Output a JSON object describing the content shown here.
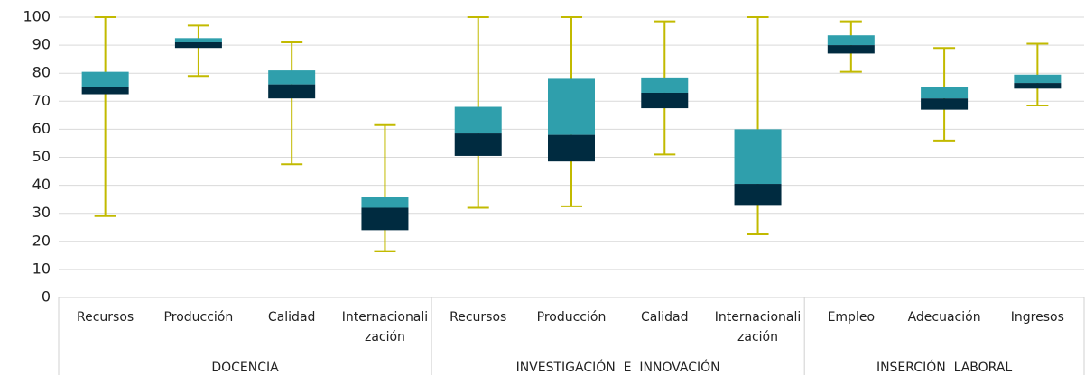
{
  "chart_data": {
    "type": "box",
    "ylim": [
      0,
      100
    ],
    "yticks": [
      0,
      10,
      20,
      30,
      40,
      50,
      60,
      70,
      80,
      90,
      100
    ],
    "grid": true,
    "colors": {
      "upper": "#2f9fac",
      "lower": "#002b40",
      "whisker": "#c2ba00"
    },
    "groups": [
      {
        "name": "DOCENCIA",
        "boxes": [
          {
            "label": "Recursos",
            "min": 29,
            "q1": 72.5,
            "median": 75,
            "q3": 80.5,
            "max": 100
          },
          {
            "label": "Producción",
            "min": 79,
            "q1": 89,
            "median": 91,
            "q3": 92.5,
            "max": 97
          },
          {
            "label": "Calidad",
            "min": 47.5,
            "q1": 71,
            "median": 76,
            "q3": 81,
            "max": 91
          },
          {
            "label": "Internacionalización",
            "min": 16.5,
            "q1": 24,
            "median": 32,
            "q3": 36,
            "max": 61.5
          }
        ]
      },
      {
        "name": "INVESTIGACIÓN  E  INNOVACIÓN",
        "boxes": [
          {
            "label": "Recursos",
            "min": 32,
            "q1": 50.5,
            "median": 58.5,
            "q3": 68,
            "max": 100
          },
          {
            "label": "Producción",
            "min": 32.5,
            "q1": 48.5,
            "median": 58,
            "q3": 78,
            "max": 100
          },
          {
            "label": "Calidad",
            "min": 51,
            "q1": 67.5,
            "median": 73,
            "q3": 78.5,
            "max": 98.5
          },
          {
            "label": "Internacionalización",
            "min": 22.5,
            "q1": 33,
            "median": 40.5,
            "q3": 60,
            "max": 100
          }
        ]
      },
      {
        "name": "INSERCIÓN  LABORAL",
        "boxes": [
          {
            "label": "Empleo",
            "min": 80.5,
            "q1": 87,
            "median": 90,
            "q3": 93.5,
            "max": 98.5
          },
          {
            "label": "Adecuación",
            "min": 56,
            "q1": 67,
            "median": 71,
            "q3": 75,
            "max": 89
          },
          {
            "label": "Ingresos",
            "min": 68.5,
            "q1": 74.5,
            "median": 76.5,
            "q3": 79.5,
            "max": 90.5
          }
        ]
      }
    ]
  }
}
